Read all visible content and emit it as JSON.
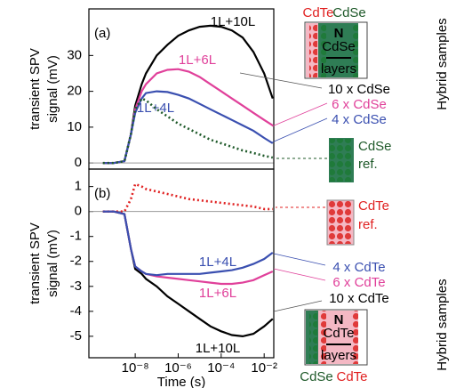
{
  "chart_data": [
    {
      "type": "line",
      "panel": "(a)",
      "ylabel": [
        "transient SPV",
        "signal (mV)"
      ],
      "xscale": "log",
      "xlim": [
        7e-11,
        0.028
      ],
      "ylim": [
        -1.7,
        43
      ],
      "yticks": [
        0,
        10,
        20,
        30
      ],
      "x": [
        3.16e-10,
        1e-09,
        3.16e-09,
        6.31e-09,
        1e-08,
        2e-08,
        3.16e-08,
        1e-07,
        3.16e-07,
        1e-06,
        3.16e-06,
        1e-05,
        3.16e-05,
        0.0001,
        0.000316,
        0.001,
        0.00316,
        0.01,
        0.025
      ],
      "series": [
        {
          "name": "1L+10L",
          "color": "#000000",
          "values": [
            0,
            0,
            0.5,
            8,
            16,
            22,
            25,
            30,
            33,
            35.5,
            37,
            38,
            38.3,
            38,
            37,
            35,
            31,
            25,
            18
          ]
        },
        {
          "name": "1L+6L",
          "color": "#e0409a",
          "values": [
            0,
            0,
            0.5,
            8,
            15,
            20,
            22,
            25,
            26,
            26.2,
            25.5,
            24,
            22,
            20,
            18,
            16,
            14,
            12,
            10.5
          ]
        },
        {
          "name": "1L+4L",
          "color": "#3a4fb0",
          "values": [
            0,
            0,
            0.5,
            8,
            14,
            18,
            19.5,
            20,
            19.8,
            19,
            18,
            16.5,
            15,
            13.5,
            12,
            10.5,
            9,
            7,
            5.5
          ]
        },
        {
          "color": "#1f5a2a",
          "dotted": true,
          "values": [
            0,
            0,
            0.5,
            8,
            15,
            18,
            17.5,
            15,
            13,
            11,
            9.5,
            8,
            6.5,
            5.5,
            4.5,
            3.5,
            2.8,
            2,
            1.5
          ]
        }
      ]
    },
    {
      "type": "line",
      "panel": "(b)",
      "ylabel": [
        "transient SPV",
        "signal (mV)"
      ],
      "xlabel": "Time (s)",
      "xscale": "log",
      "xlim": [
        7e-11,
        0.028
      ],
      "ylim": [
        -5.86,
        1.7
      ],
      "xticks": [
        {
          "value": 1e-08,
          "label": "10⁻⁸"
        },
        {
          "value": 1e-06,
          "label": "10⁻⁶"
        },
        {
          "value": 0.0001,
          "label": "10⁻⁴"
        },
        {
          "value": 0.01,
          "label": "10⁻²"
        }
      ],
      "yticks": [
        1,
        0,
        -1,
        -2,
        -3,
        -4,
        -5
      ],
      "x": [
        3.16e-10,
        1e-09,
        3.16e-09,
        6.31e-09,
        1e-08,
        2e-08,
        3.16e-08,
        1e-07,
        3.16e-07,
        1e-06,
        3.16e-06,
        1e-05,
        3.16e-05,
        0.0001,
        0.000316,
        0.001,
        0.00316,
        0.01,
        0.025
      ],
      "series": [
        {
          "color": "#e02020",
          "dotted": true,
          "values": [
            0,
            0,
            0,
            0.5,
            1.1,
            1.0,
            0.9,
            0.8,
            0.7,
            0.6,
            0.5,
            0.45,
            0.4,
            0.35,
            0.3,
            0.25,
            0.2,
            0.1,
            0.1
          ]
        },
        {
          "name": "1L+10L",
          "color": "#000000",
          "values": [
            0,
            0,
            -0.1,
            -1.5,
            -2.3,
            -2.5,
            -2.7,
            -3.0,
            -3.4,
            -3.7,
            -4.0,
            -4.3,
            -4.6,
            -4.8,
            -4.95,
            -5.0,
            -4.9,
            -4.6,
            -4.3
          ]
        },
        {
          "name": "1L+6L",
          "color": "#e0409a",
          "values": [
            0,
            0,
            -0.1,
            -1.5,
            -2.2,
            -2.4,
            -2.5,
            -2.6,
            -2.65,
            -2.7,
            -2.75,
            -2.8,
            -2.85,
            -2.9,
            -2.9,
            -2.85,
            -2.75,
            -2.55,
            -2.4
          ]
        },
        {
          "name": "1L+4L",
          "color": "#3a4fb0",
          "values": [
            0,
            0,
            -0.1,
            -1.5,
            -2.2,
            -2.4,
            -2.5,
            -2.55,
            -2.5,
            -2.5,
            -2.5,
            -2.5,
            -2.45,
            -2.4,
            -2.35,
            -2.25,
            -2.1,
            -1.9,
            -1.65
          ]
        }
      ]
    }
  ],
  "diagram": {
    "top_header": [
      "CdTe",
      "CdSe"
    ],
    "top_box": {
      "n": "N",
      "layers": [
        "CdSe",
        "layers"
      ]
    },
    "cdse_labels": [
      "10 x CdSe",
      "6 x CdSe",
      "4 x CdSe"
    ],
    "cdse_ref": [
      "CdSe",
      "ref."
    ],
    "cdte_ref": [
      "CdTe",
      "ref."
    ],
    "cdte_labels": [
      "4 x CdTe",
      "6 x CdTe",
      "10 x CdTe"
    ],
    "bottom_box": {
      "n": "N",
      "layers": [
        "CdTe",
        "layers"
      ]
    },
    "bottom_footer": [
      "CdSe",
      "CdTe"
    ],
    "side_labels": [
      "Hybrid samples",
      "Hybrid samples"
    ]
  }
}
